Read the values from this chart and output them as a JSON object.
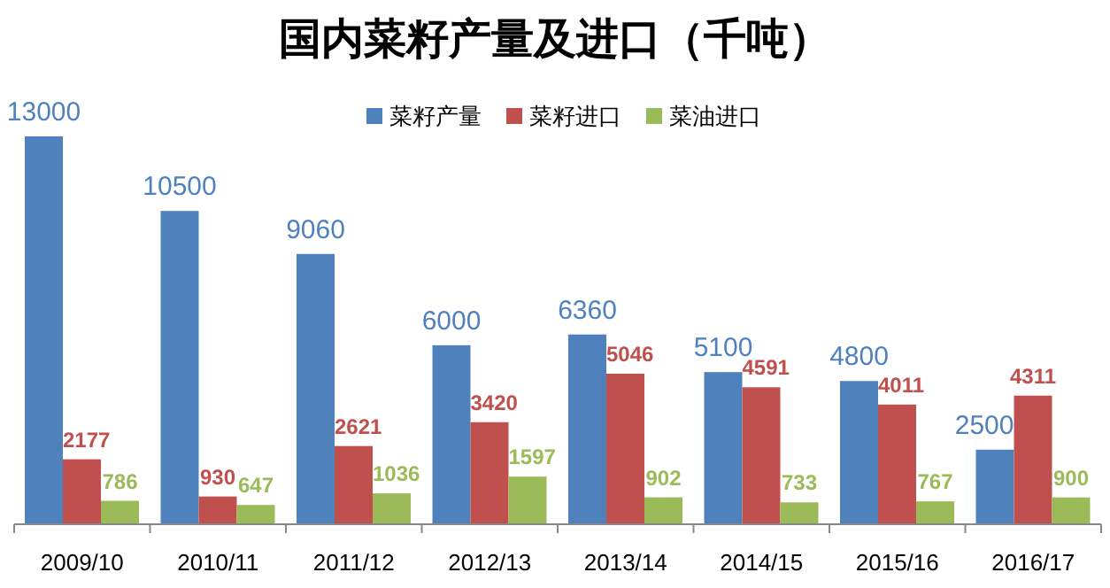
{
  "chart_data": {
    "type": "bar",
    "title": "国内菜籽产量及进口（千吨）",
    "categories": [
      "2009/10",
      "2010/11",
      "2011/12",
      "2012/13",
      "2013/14",
      "2014/15",
      "2015/16",
      "2016/17"
    ],
    "series": [
      {
        "name": "菜籽产量",
        "color": "#4f81bd",
        "values": [
          13000,
          10500,
          9060,
          6000,
          6360,
          5100,
          4800,
          2500
        ]
      },
      {
        "name": "菜籽进口",
        "color": "#c0504d",
        "values": [
          2177,
          930,
          2621,
          3420,
          5046,
          4591,
          4011,
          4311
        ]
      },
      {
        "name": "菜油进口",
        "color": "#9bbb59",
        "values": [
          786,
          647,
          1036,
          1597,
          902,
          733,
          767,
          900
        ]
      }
    ],
    "data_labels": true,
    "legend": "top",
    "grid": false
  }
}
